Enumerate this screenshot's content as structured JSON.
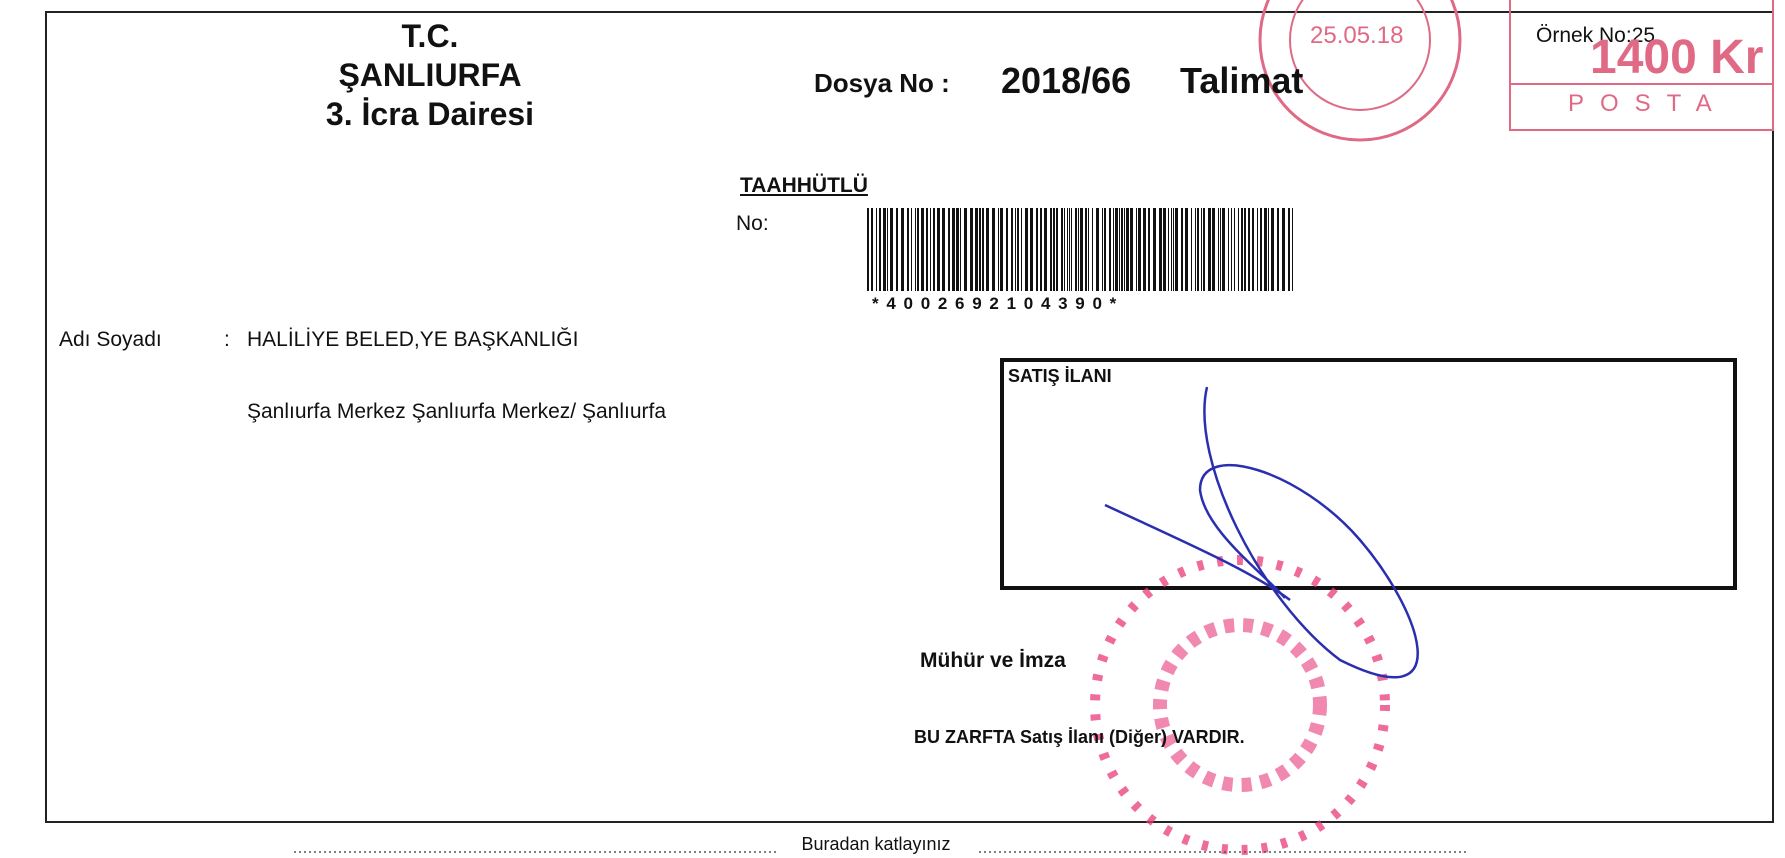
{
  "header": {
    "line1": "T.C.",
    "line2": "ŞANLIURFA",
    "line3": "3. İcra Dairesi"
  },
  "file": {
    "label": "Dosya No :",
    "number": "2018/66",
    "kind": "Talimat"
  },
  "sample": "Örnek No:25",
  "postmark": {
    "date": "25.05.18",
    "amount": "1400 Kr",
    "service": "POSTA"
  },
  "registered": {
    "label": "TAAHHÜTLÜ",
    "no_label": "No:",
    "barcode_text": "* 4 0 0 2 6 9 2 1 0 4 3 9 0 *"
  },
  "recipient": {
    "label": "Adı Soyadı",
    "separator": ":",
    "name": "HALİLİYE BELED,YE BAŞKANLIĞI",
    "address": "Şanlıurfa Merkez Şanlıurfa Merkez/ Şanlıurfa"
  },
  "notice_box": {
    "title": "SATIŞ İLANI"
  },
  "seal": "Mühür ve İmza",
  "contents": "BU ZARFTA Satış İlanı (Diğer)  VARDIR.",
  "fold": "Buradan katlayınız"
}
